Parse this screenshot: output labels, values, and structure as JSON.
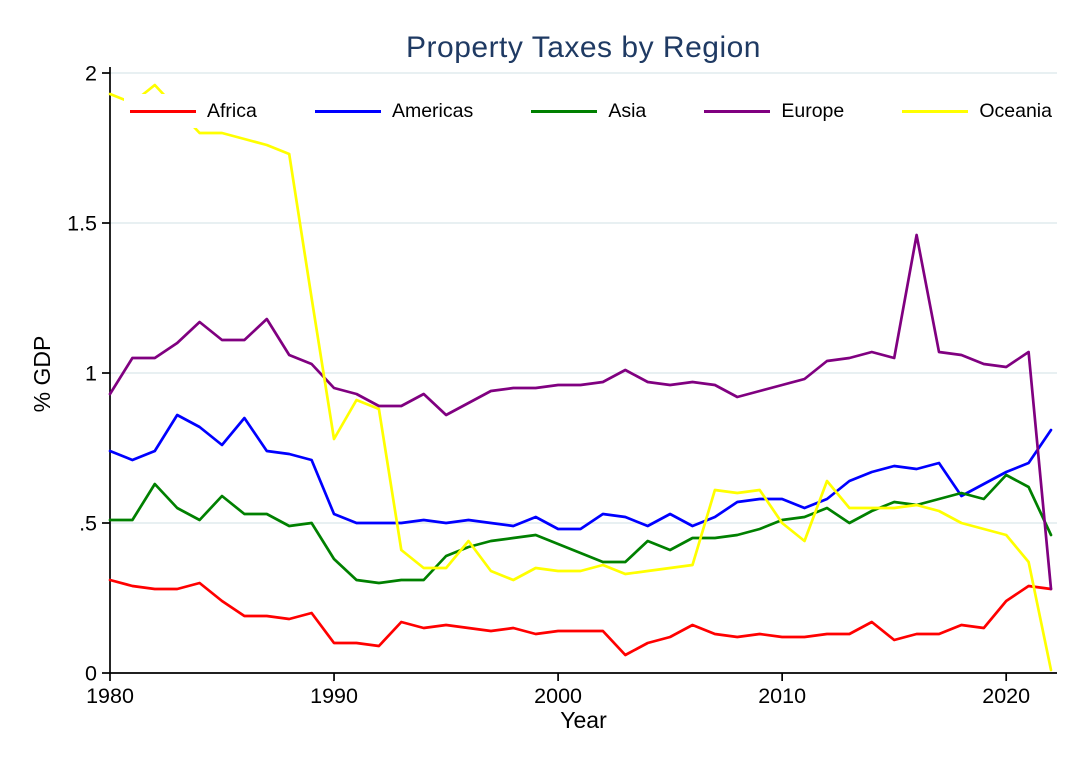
{
  "title": "Property Taxes by Region",
  "colors": {
    "title_text": "#1f3a63",
    "grid": "#e4eef0",
    "axis": "#000000",
    "background": "#ffffff"
  },
  "chart_data": {
    "type": "line",
    "title": "Property Taxes by Region",
    "xlabel": "Year",
    "ylabel": "% GDP",
    "x_range": [
      1980,
      2022
    ],
    "ylim": [
      0,
      2
    ],
    "grid": "horizontal",
    "legend_position": "top-inside",
    "x_ticks": [
      1980,
      1990,
      2000,
      2010,
      2020
    ],
    "y_ticks": [
      {
        "value": 0,
        "label": "0"
      },
      {
        "value": 0.5,
        "label": ".5"
      },
      {
        "value": 1,
        "label": "1"
      },
      {
        "value": 1.5,
        "label": "1.5"
      },
      {
        "value": 2,
        "label": "2"
      }
    ],
    "x": [
      1980,
      1981,
      1982,
      1983,
      1984,
      1985,
      1986,
      1987,
      1988,
      1989,
      1990,
      1991,
      1992,
      1993,
      1994,
      1995,
      1996,
      1997,
      1998,
      1999,
      2000,
      2001,
      2002,
      2003,
      2004,
      2005,
      2006,
      2007,
      2008,
      2009,
      2010,
      2011,
      2012,
      2013,
      2014,
      2015,
      2016,
      2017,
      2018,
      2019,
      2020,
      2021,
      2022
    ],
    "series": [
      {
        "name": "Africa",
        "color": "#ff0000",
        "values": [
          0.31,
          0.29,
          0.28,
          0.28,
          0.3,
          0.24,
          0.19,
          0.19,
          0.18,
          0.2,
          0.1,
          0.1,
          0.09,
          0.17,
          0.15,
          0.16,
          0.15,
          0.14,
          0.15,
          0.13,
          0.14,
          0.14,
          0.14,
          0.06,
          0.1,
          0.12,
          0.16,
          0.13,
          0.12,
          0.13,
          0.12,
          0.12,
          0.13,
          0.13,
          0.17,
          0.11,
          0.13,
          0.13,
          0.16,
          0.15,
          0.24,
          0.29,
          0.28
        ]
      },
      {
        "name": "Americas",
        "color": "#0000ff",
        "values": [
          0.74,
          0.71,
          0.74,
          0.86,
          0.82,
          0.76,
          0.85,
          0.74,
          0.73,
          0.71,
          0.53,
          0.5,
          0.5,
          0.5,
          0.51,
          0.5,
          0.51,
          0.5,
          0.49,
          0.52,
          0.48,
          0.48,
          0.53,
          0.52,
          0.49,
          0.53,
          0.49,
          0.52,
          0.57,
          0.58,
          0.58,
          0.55,
          0.58,
          0.64,
          0.67,
          0.69,
          0.68,
          0.7,
          0.59,
          0.63,
          0.67,
          0.7,
          0.81
        ]
      },
      {
        "name": "Asia",
        "color": "#008000",
        "values": [
          0.51,
          0.51,
          0.63,
          0.55,
          0.51,
          0.59,
          0.53,
          0.53,
          0.49,
          0.5,
          0.38,
          0.31,
          0.3,
          0.31,
          0.31,
          0.39,
          0.42,
          0.44,
          0.45,
          0.46,
          0.43,
          0.4,
          0.37,
          0.37,
          0.44,
          0.41,
          0.45,
          0.45,
          0.46,
          0.48,
          0.51,
          0.52,
          0.55,
          0.5,
          0.54,
          0.57,
          0.56,
          0.58,
          0.6,
          0.58,
          0.66,
          0.62,
          0.46
        ]
      },
      {
        "name": "Europe",
        "color": "#800080",
        "values": [
          0.93,
          1.05,
          1.05,
          1.1,
          1.17,
          1.11,
          1.11,
          1.18,
          1.06,
          1.03,
          0.95,
          0.93,
          0.89,
          0.89,
          0.93,
          0.86,
          0.9,
          0.94,
          0.95,
          0.95,
          0.96,
          0.96,
          0.97,
          1.01,
          0.97,
          0.96,
          0.97,
          0.96,
          0.92,
          0.94,
          0.96,
          0.98,
          1.04,
          1.05,
          1.07,
          1.05,
          1.46,
          1.07,
          1.06,
          1.03,
          1.02,
          1.07,
          0.28
        ]
      },
      {
        "name": "Oceania",
        "color": "#ffff00",
        "values": [
          1.93,
          1.9,
          1.96,
          1.88,
          1.8,
          1.8,
          1.78,
          1.76,
          1.73,
          1.25,
          0.78,
          0.91,
          0.88,
          0.41,
          0.35,
          0.35,
          0.44,
          0.34,
          0.31,
          0.35,
          0.34,
          0.34,
          0.36,
          0.33,
          0.34,
          0.35,
          0.36,
          0.61,
          0.6,
          0.61,
          0.5,
          0.44,
          0.64,
          0.55,
          0.55,
          0.55,
          0.56,
          0.54,
          0.5,
          0.48,
          0.46,
          0.37,
          0.01
        ]
      }
    ]
  }
}
